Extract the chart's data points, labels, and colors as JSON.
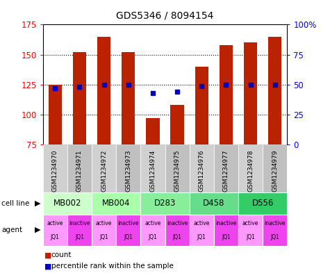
{
  "title": "GDS5346 / 8094154",
  "samples": [
    "GSM1234970",
    "GSM1234971",
    "GSM1234972",
    "GSM1234973",
    "GSM1234974",
    "GSM1234975",
    "GSM1234976",
    "GSM1234977",
    "GSM1234978",
    "GSM1234979"
  ],
  "counts": [
    125,
    152,
    165,
    152,
    97,
    108,
    140,
    158,
    160,
    165
  ],
  "percentile_ranks": [
    47,
    48,
    50,
    50,
    43,
    44,
    49,
    50,
    50,
    50
  ],
  "cell_lines": [
    {
      "label": "MB002",
      "start": 0,
      "end": 2,
      "color": "#ccffcc"
    },
    {
      "label": "MB004",
      "start": 2,
      "end": 4,
      "color": "#aaffaa"
    },
    {
      "label": "D283",
      "start": 4,
      "end": 6,
      "color": "#88ee99"
    },
    {
      "label": "D458",
      "start": 6,
      "end": 8,
      "color": "#66dd88"
    },
    {
      "label": "D556",
      "start": 8,
      "end": 10,
      "color": "#33cc66"
    }
  ],
  "agents": [
    "active",
    "inactive",
    "active",
    "inactive",
    "active",
    "inactive",
    "active",
    "inactive",
    "active",
    "inactive"
  ],
  "agent_labels": [
    "JQ1",
    "JQ1",
    "JQ1",
    "JQ1",
    "JQ1",
    "JQ1",
    "JQ1",
    "JQ1",
    "JQ1",
    "JQ1"
  ],
  "agent_active_color": "#ff99ff",
  "agent_inactive_color": "#ee44ee",
  "sample_bg_odd": "#cccccc",
  "sample_bg_even": "#bbbbbb",
  "bar_color": "#bb2200",
  "marker_color": "#0000bb",
  "ylim_left": [
    75,
    175
  ],
  "ylim_right": [
    0,
    100
  ],
  "yticks_left": [
    75,
    100,
    125,
    150,
    175
  ],
  "yticks_right": [
    0,
    25,
    50,
    75,
    100
  ],
  "ytick_labels_left": [
    "75",
    "100",
    "125",
    "150",
    "175"
  ],
  "ytick_labels_right": [
    "0",
    "25",
    "50",
    "75",
    "100%"
  ],
  "background_color": "#ffffff"
}
